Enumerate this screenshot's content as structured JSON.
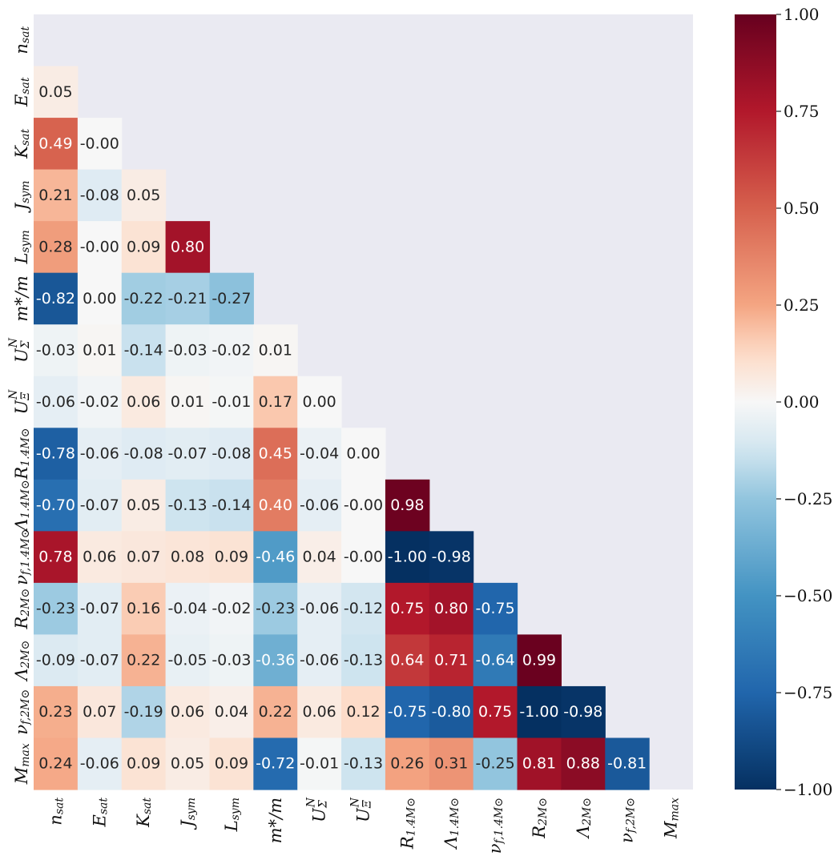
{
  "chart_data": {
    "type": "heatmap",
    "variables": [
      {
        "base": "n",
        "sub": "sat",
        "sup": ""
      },
      {
        "base": "E",
        "sub": "sat",
        "sup": ""
      },
      {
        "base": "K",
        "sub": "sat",
        "sup": ""
      },
      {
        "base": "J",
        "sub": "sym",
        "sup": ""
      },
      {
        "base": "L",
        "sub": "sym",
        "sup": ""
      },
      {
        "base": "m*/m",
        "sub": "",
        "sup": ""
      },
      {
        "base": "U",
        "sub": "Σ",
        "sup": "N"
      },
      {
        "base": "U",
        "sub": "Ξ",
        "sup": "N"
      },
      {
        "base": "R",
        "sub": "1.4M⊙",
        "sup": ""
      },
      {
        "base": "Λ",
        "sub": "1.4M⊙",
        "sup": ""
      },
      {
        "base": "ν",
        "sub": "f,1.4M⊙",
        "sup": ""
      },
      {
        "base": "R",
        "sub": "2M⊙",
        "sup": ""
      },
      {
        "base": "Λ",
        "sub": "2M⊙",
        "sup": ""
      },
      {
        "base": "ν",
        "sub": "f,2M⊙",
        "sup": ""
      },
      {
        "base": "M",
        "sub": "max",
        "sup": ""
      }
    ],
    "matrix": [
      [],
      [
        "0.05"
      ],
      [
        "0.49",
        "-0.00"
      ],
      [
        "0.21",
        "-0.08",
        "0.05"
      ],
      [
        "0.28",
        "-0.00",
        "0.09",
        "0.80"
      ],
      [
        "-0.82",
        "0.00",
        "-0.22",
        "-0.21",
        "-0.27"
      ],
      [
        "-0.03",
        "0.01",
        "-0.14",
        "-0.03",
        "-0.02",
        "0.01"
      ],
      [
        "-0.06",
        "-0.02",
        "0.06",
        "0.01",
        "-0.01",
        "0.17",
        "0.00"
      ],
      [
        "-0.78",
        "-0.06",
        "-0.08",
        "-0.07",
        "-0.08",
        "0.45",
        "-0.04",
        "0.00"
      ],
      [
        "-0.70",
        "-0.07",
        "0.05",
        "-0.13",
        "-0.14",
        "0.40",
        "-0.06",
        "-0.00",
        "0.98"
      ],
      [
        "0.78",
        "0.06",
        "0.07",
        "0.08",
        "0.09",
        "-0.46",
        "0.04",
        "-0.00",
        "-1.00",
        "-0.98"
      ],
      [
        "-0.23",
        "-0.07",
        "0.16",
        "-0.04",
        "-0.02",
        "-0.23",
        "-0.06",
        "-0.12",
        "0.75",
        "0.80",
        "-0.75"
      ],
      [
        "-0.09",
        "-0.07",
        "0.22",
        "-0.05",
        "-0.03",
        "-0.36",
        "-0.06",
        "-0.13",
        "0.64",
        "0.71",
        "-0.64",
        "0.99"
      ],
      [
        "0.23",
        "0.07",
        "-0.19",
        "0.06",
        "0.04",
        "0.22",
        "0.06",
        "0.12",
        "-0.75",
        "-0.80",
        "0.75",
        "-1.00",
        "-0.98"
      ],
      [
        "0.24",
        "-0.06",
        "0.09",
        "0.05",
        "0.09",
        "-0.72",
        "-0.01",
        "-0.13",
        "0.26",
        "0.31",
        "-0.25",
        "0.81",
        "0.88",
        "-0.81"
      ]
    ],
    "mask": "upper-triangle-and-diagonal",
    "colormap": "RdBu_r",
    "vmin": -1.0,
    "vmax": 1.0,
    "colorbar_ticks": [
      "1.00",
      "0.75",
      "0.50",
      "0.25",
      "0.00",
      "−0.25",
      "−0.50",
      "−0.75",
      "−1.00"
    ],
    "background_color": "#eaeaf2"
  }
}
